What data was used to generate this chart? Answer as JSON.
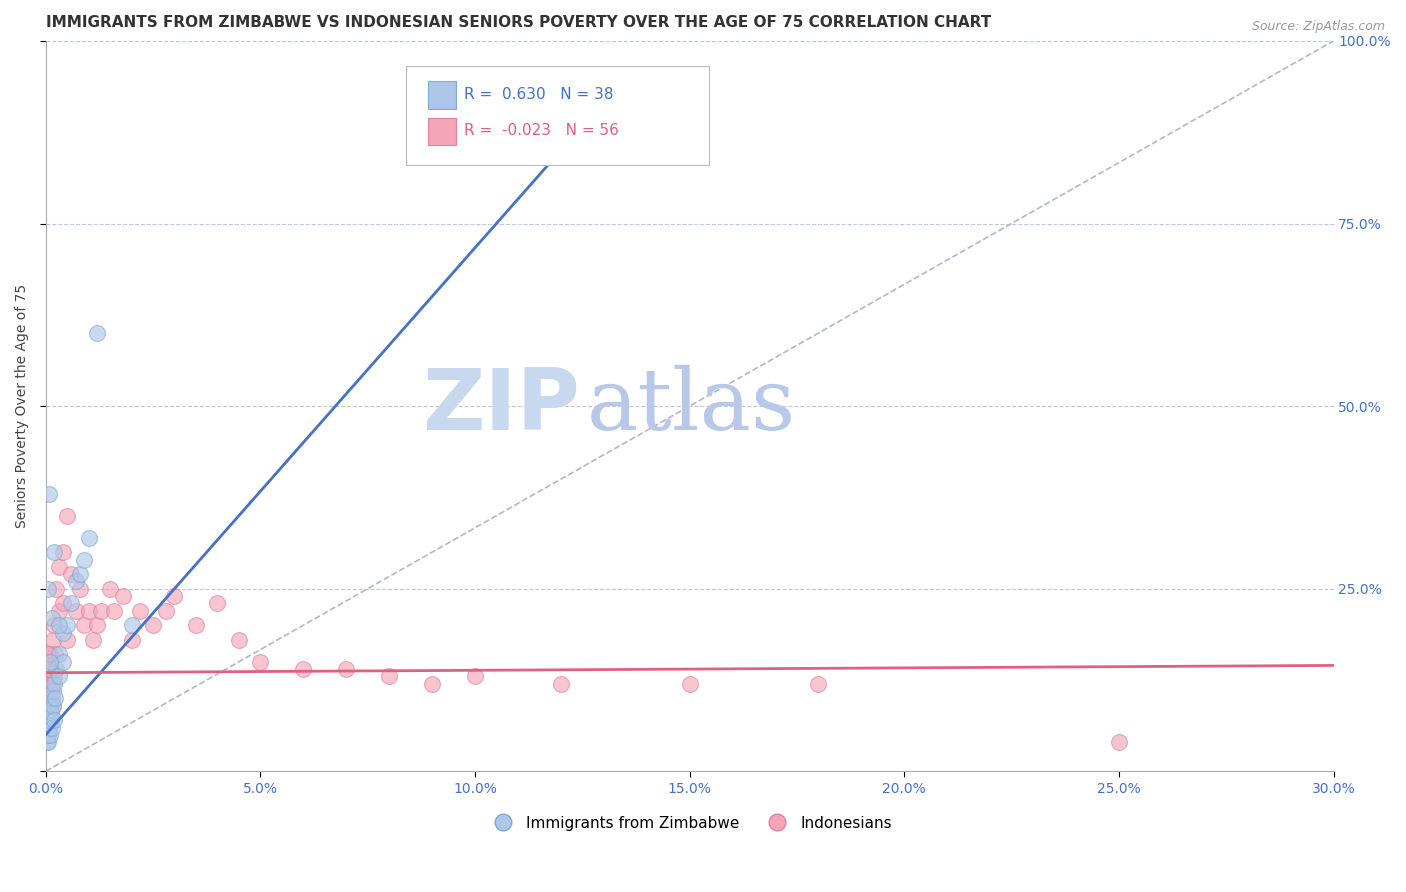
{
  "title": "IMMIGRANTS FROM ZIMBABWE VS INDONESIAN SENIORS POVERTY OVER THE AGE OF 75 CORRELATION CHART",
  "source": "Source: ZipAtlas.com",
  "ylabel": "Seniors Poverty Over the Age of 75",
  "xlim": [
    0.0,
    0.3
  ],
  "ylim": [
    0.0,
    1.0
  ],
  "legend_entries": [
    {
      "label": "Immigrants from Zimbabwe",
      "R": 0.63,
      "N": 38,
      "color": "#aec6e8"
    },
    {
      "label": "Indonesians",
      "R": -0.023,
      "N": 56,
      "color": "#f4a6b8"
    }
  ],
  "blue_scatter_x": [
    0.0002,
    0.0003,
    0.0004,
    0.0005,
    0.0006,
    0.0007,
    0.0008,
    0.0009,
    0.001,
    0.001,
    0.0012,
    0.0013,
    0.0015,
    0.0015,
    0.0016,
    0.0018,
    0.002,
    0.002,
    0.0022,
    0.0025,
    0.003,
    0.003,
    0.004,
    0.004,
    0.005,
    0.006,
    0.007,
    0.008,
    0.009,
    0.01,
    0.0005,
    0.0008,
    0.001,
    0.0015,
    0.002,
    0.003,
    0.012,
    0.02
  ],
  "blue_scatter_y": [
    0.04,
    0.05,
    0.06,
    0.04,
    0.05,
    0.07,
    0.06,
    0.08,
    0.05,
    0.09,
    0.07,
    0.08,
    0.1,
    0.06,
    0.09,
    0.11,
    0.07,
    0.12,
    0.1,
    0.14,
    0.13,
    0.16,
    0.15,
    0.19,
    0.2,
    0.23,
    0.26,
    0.27,
    0.29,
    0.32,
    0.25,
    0.38,
    0.15,
    0.21,
    0.3,
    0.2,
    0.6,
    0.2
  ],
  "pink_scatter_x": [
    0.0002,
    0.0003,
    0.0005,
    0.0006,
    0.0007,
    0.0008,
    0.0009,
    0.001,
    0.001,
    0.0012,
    0.0013,
    0.0015,
    0.0016,
    0.0018,
    0.002,
    0.002,
    0.0022,
    0.0025,
    0.003,
    0.003,
    0.004,
    0.004,
    0.005,
    0.005,
    0.006,
    0.007,
    0.008,
    0.009,
    0.01,
    0.011,
    0.012,
    0.013,
    0.015,
    0.016,
    0.018,
    0.02,
    0.022,
    0.025,
    0.028,
    0.03,
    0.035,
    0.04,
    0.045,
    0.05,
    0.06,
    0.07,
    0.08,
    0.09,
    0.1,
    0.12,
    0.15,
    0.18,
    0.0004,
    0.0006,
    0.001,
    0.25
  ],
  "pink_scatter_y": [
    0.12,
    0.08,
    0.1,
    0.13,
    0.07,
    0.15,
    0.09,
    0.11,
    0.16,
    0.1,
    0.14,
    0.12,
    0.18,
    0.09,
    0.13,
    0.2,
    0.16,
    0.25,
    0.22,
    0.28,
    0.3,
    0.23,
    0.35,
    0.18,
    0.27,
    0.22,
    0.25,
    0.2,
    0.22,
    0.18,
    0.2,
    0.22,
    0.25,
    0.22,
    0.24,
    0.18,
    0.22,
    0.2,
    0.22,
    0.24,
    0.2,
    0.23,
    0.18,
    0.15,
    0.14,
    0.14,
    0.13,
    0.12,
    0.13,
    0.12,
    0.12,
    0.12,
    0.14,
    0.16,
    0.14,
    0.04
  ],
  "blue_line_x": [
    0.0,
    0.135
  ],
  "blue_line_y": [
    0.05,
    0.95
  ],
  "pink_line_x": [
    0.0,
    0.3
  ],
  "pink_line_y": [
    0.135,
    0.145
  ],
  "blue_line_color": "#4472C4",
  "pink_line_color": "#E06080",
  "diagonal_line_color": "#b0b8c8",
  "background_color": "#ffffff",
  "grid_color": "#c0c8d8",
  "title_fontsize": 11,
  "axis_label_fontsize": 10,
  "tick_fontsize": 10,
  "watermark_zip": "ZIP",
  "watermark_atlas": "atlas",
  "watermark_color_zip": "#c8d8ee",
  "watermark_color_atlas": "#b8c8e8"
}
